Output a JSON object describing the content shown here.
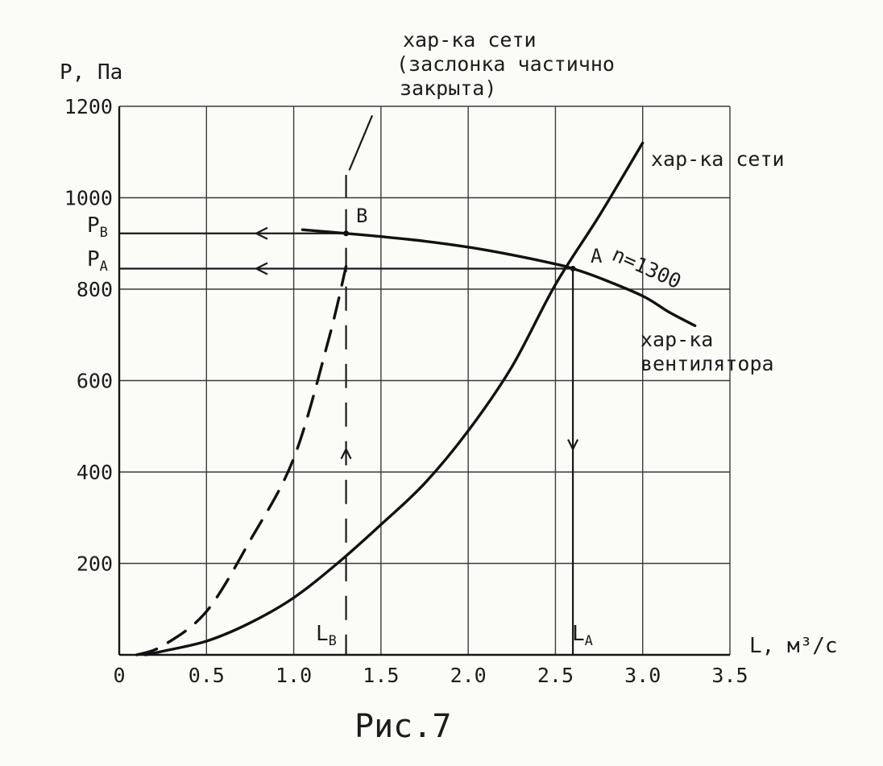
{
  "chart_data": {
    "type": "line",
    "ylabel": "P, Па",
    "xlabel": "L, м³/с",
    "caption": "Рис.7",
    "xlim": [
      0,
      3.5
    ],
    "ylim": [
      0,
      1200
    ],
    "x_ticks": [
      {
        "value": 0,
        "label": "0"
      },
      {
        "value": 0.5,
        "label": "0.5"
      },
      {
        "value": 1.0,
        "label": "1.0"
      },
      {
        "value": 1.5,
        "label": "1.5"
      },
      {
        "value": 2.0,
        "label": "2.0"
      },
      {
        "value": 2.5,
        "label": "2.5"
      },
      {
        "value": 3.0,
        "label": "3.0"
      },
      {
        "value": 3.5,
        "label": "3.5"
      }
    ],
    "y_ticks": [
      {
        "value": 200,
        "label": "200"
      },
      {
        "value": 400,
        "label": "400"
      },
      {
        "value": 600,
        "label": "600"
      },
      {
        "value": 800,
        "label": "800"
      },
      {
        "value": 1000,
        "label": "1000"
      },
      {
        "value": 1200,
        "label": "1200"
      }
    ],
    "grid": true,
    "series": [
      {
        "name": "хар-ка сети",
        "style": "solid",
        "x": [
          0.15,
          0.25,
          0.5,
          0.75,
          1.0,
          1.25,
          1.5,
          1.75,
          2.0,
          2.25,
          2.5,
          2.75,
          3.0
        ],
        "y": [
          0,
          8,
          30,
          70,
          125,
          200,
          285,
          375,
          490,
          630,
          810,
          960,
          1120
        ]
      },
      {
        "name": "хар-ка сети (заслонка частично закрыта)",
        "style": "dashed",
        "x": [
          0.1,
          0.25,
          0.5,
          0.75,
          1.0,
          1.2,
          1.3
        ],
        "y": [
          0,
          20,
          95,
          250,
          430,
          690,
          850
        ]
      },
      {
        "name": "хар-ка вентилятора n=1300",
        "style": "solid",
        "x": [
          1.05,
          1.3,
          1.5,
          1.75,
          2.0,
          2.25,
          2.5,
          2.6,
          2.75,
          3.0,
          3.15,
          3.3
        ],
        "y": [
          930,
          922,
          915,
          905,
          892,
          875,
          855,
          845,
          825,
          785,
          750,
          720
        ]
      }
    ],
    "points": [
      {
        "label": "A",
        "x": 2.6,
        "y": 845
      },
      {
        "label": "B",
        "x": 1.3,
        "y": 922
      }
    ],
    "marker_labels": {
      "p_b": "PB",
      "p_a": "PA",
      "l_b": "LB",
      "l_a": "LA"
    },
    "annotations": {
      "network_closed": [
        "хар-ка сети",
        "(заслонка частично",
        "закрыта)"
      ],
      "network": "хар-ка сети",
      "fan": [
        "хар-ка",
        "вентилятора"
      ],
      "speed": "n=1300"
    }
  }
}
